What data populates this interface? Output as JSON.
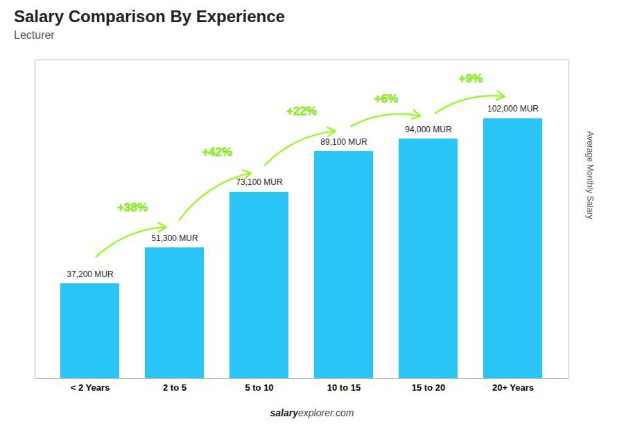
{
  "chart_data": {
    "type": "bar",
    "title": "Salary Comparison By Experience",
    "subtitle": "Lecturer",
    "ylabel": "Average Monthly Salary",
    "categories": [
      "< 2 Years",
      "2 to 5",
      "5 to 10",
      "10 to 15",
      "15 to 20",
      "20+ Years"
    ],
    "values": [
      37200,
      51300,
      73100,
      89100,
      94000,
      102000
    ],
    "value_labels": [
      "37,200 MUR",
      "51,300 MUR",
      "73,100 MUR",
      "89,100 MUR",
      "94,000 MUR",
      "102,000 MUR"
    ],
    "data_labels": true,
    "color": "#29C5F6",
    "ylim": [
      0,
      125000
    ],
    "tick_labels": "x",
    "grid": false,
    "annotations": [
      {
        "text": "+38%",
        "color": "#88FF00"
      },
      {
        "text": "+42%",
        "color": "#88FF00"
      },
      {
        "text": "+22%",
        "color": "#88FF00"
      },
      {
        "text": "+6%",
        "color": "#88FF00"
      },
      {
        "text": "+9%",
        "color": "#88FF00"
      }
    ],
    "watermark": [
      "salary",
      "explorer.com"
    ]
  }
}
